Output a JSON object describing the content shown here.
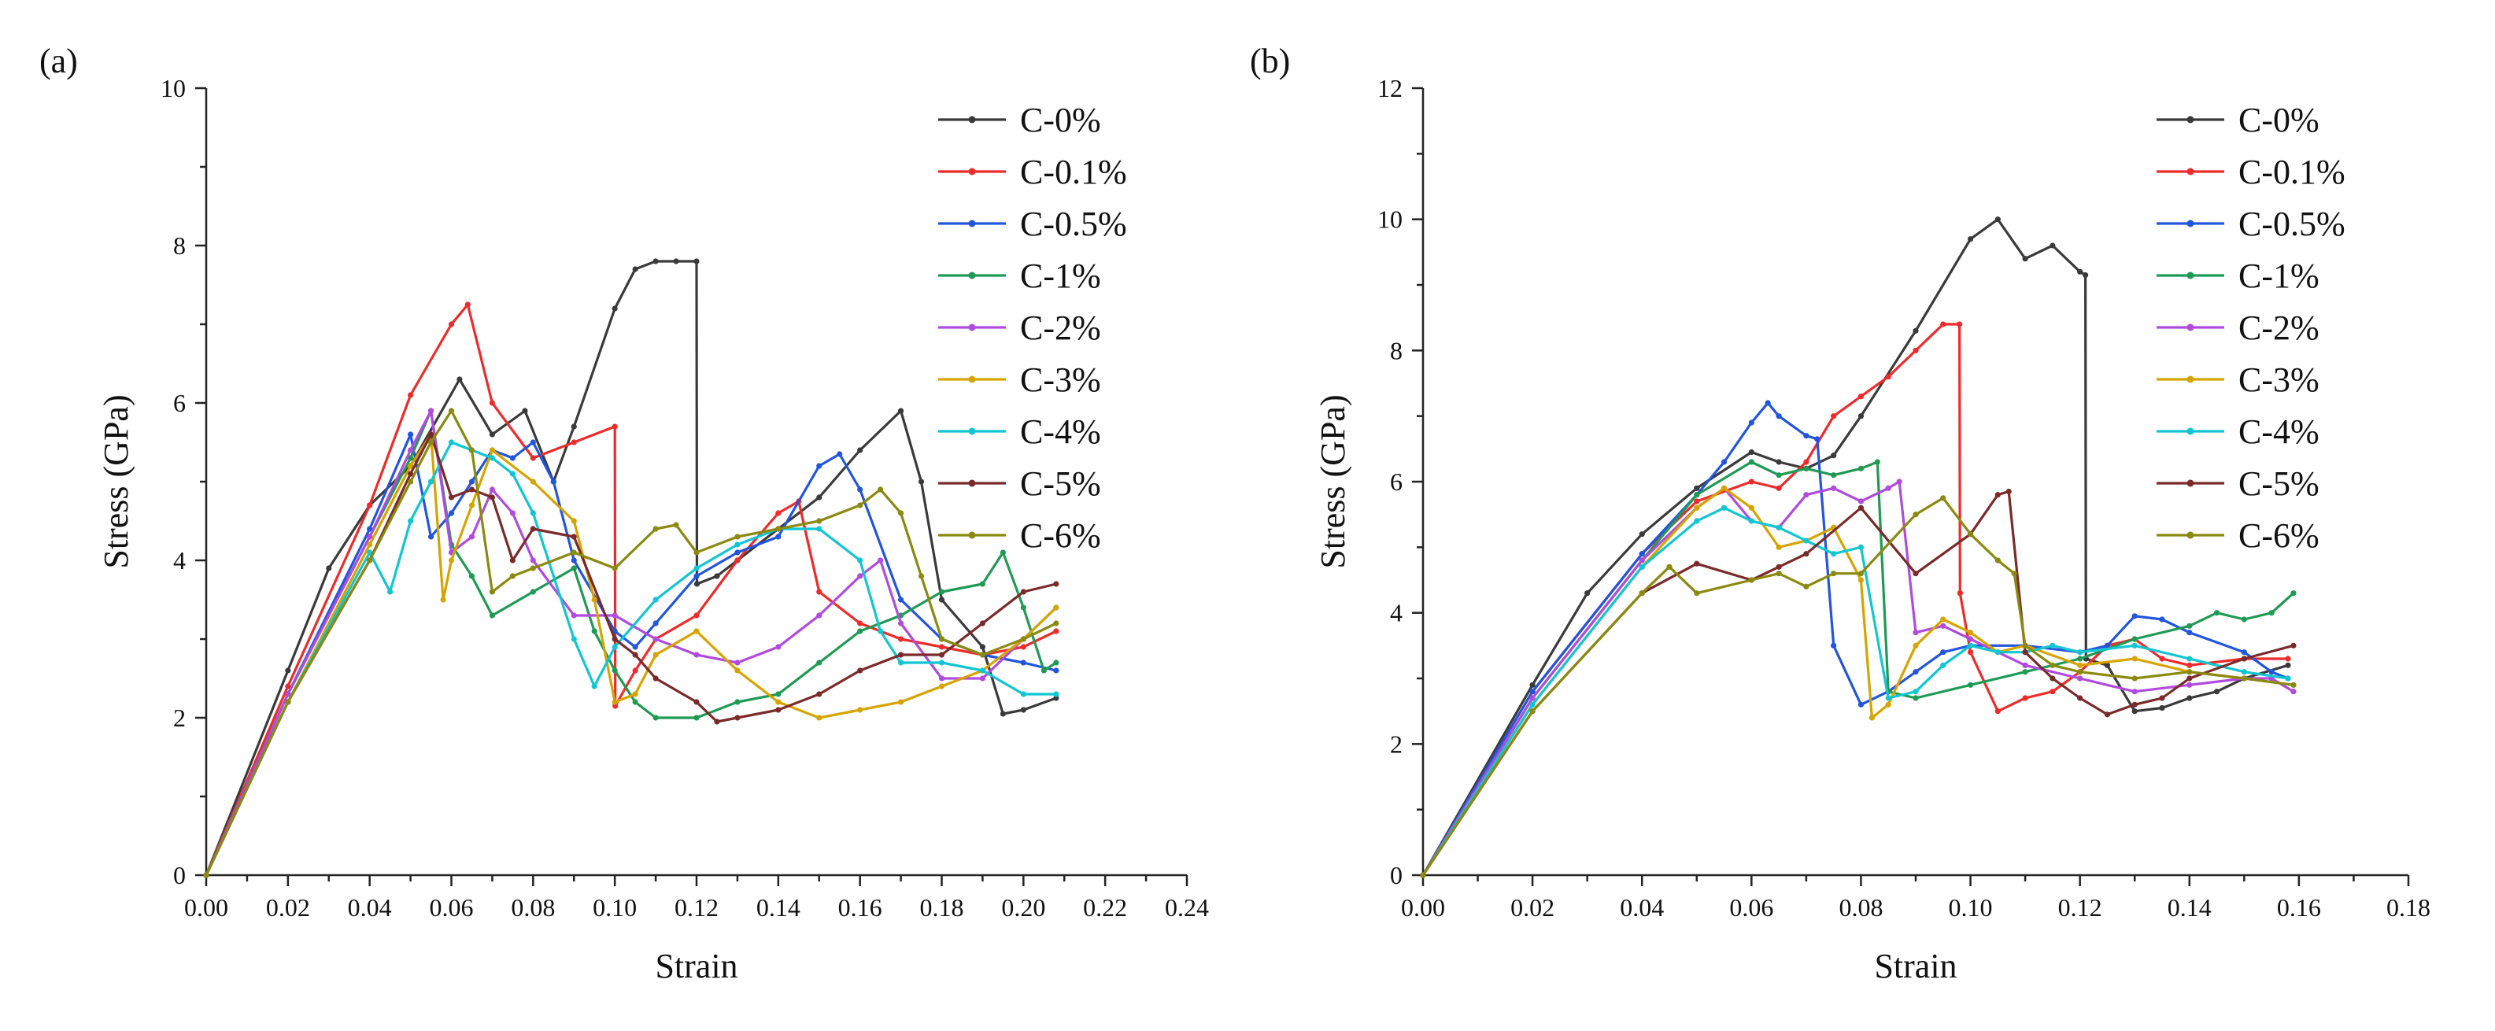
{
  "colors": {
    "C-0%": "#3a3a3a",
    "C-0.1%": "#ee2b2b",
    "C-0.5%": "#2255dd",
    "C-1%": "#1f9a55",
    "C-2%": "#b04bdd",
    "C-3%": "#d6a400",
    "C-4%": "#11c6d2",
    "C-5%": "#7a2a2a",
    "C-6%": "#8a8a10"
  },
  "chart_data": [
    {
      "panel_label": "(a)",
      "type": "line",
      "xlabel": "Strain",
      "ylabel": "Stress (GPa)",
      "xlim": [
        0,
        0.24
      ],
      "ylim": [
        0,
        10
      ],
      "xticks": [
        "0.00",
        "0.02",
        "0.04",
        "0.06",
        "0.08",
        "0.10",
        "0.12",
        "0.14",
        "0.16",
        "0.18",
        "0.20",
        "0.22",
        "0.24"
      ],
      "yticks": [
        "0",
        "2",
        "4",
        "6",
        "8",
        "10"
      ],
      "legend_position": "top-right",
      "series": [
        {
          "name": "C-0%",
          "x": [
            0,
            0.02,
            0.03,
            0.04,
            0.05,
            0.062,
            0.07,
            0.078,
            0.085,
            0.09,
            0.1,
            0.105,
            0.11,
            0.115,
            0.12,
            0.1201,
            0.125,
            0.13,
            0.14,
            0.15,
            0.16,
            0.17,
            0.175,
            0.18,
            0.19,
            0.195,
            0.2,
            0.208
          ],
          "y": [
            0,
            2.6,
            3.9,
            4.7,
            5.2,
            6.3,
            5.6,
            5.9,
            5.0,
            5.7,
            7.2,
            7.7,
            7.8,
            7.8,
            7.8,
            3.7,
            3.8,
            4.0,
            4.4,
            4.8,
            5.4,
            5.9,
            5.0,
            3.5,
            2.9,
            2.05,
            2.1,
            2.25
          ]
        },
        {
          "name": "C-0.1%",
          "x": [
            0,
            0.02,
            0.04,
            0.05,
            0.06,
            0.064,
            0.07,
            0.08,
            0.09,
            0.1,
            0.1001,
            0.105,
            0.11,
            0.12,
            0.13,
            0.14,
            0.145,
            0.15,
            0.16,
            0.17,
            0.18,
            0.19,
            0.2,
            0.208
          ],
          "y": [
            0,
            2.4,
            4.7,
            6.1,
            7.0,
            7.25,
            6.0,
            5.3,
            5.5,
            5.7,
            2.15,
            2.6,
            3.0,
            3.3,
            4.0,
            4.6,
            4.75,
            3.6,
            3.2,
            3.0,
            2.9,
            2.8,
            2.9,
            3.1
          ]
        },
        {
          "name": "C-0.5%",
          "x": [
            0,
            0.02,
            0.04,
            0.05,
            0.055,
            0.06,
            0.065,
            0.07,
            0.075,
            0.08,
            0.085,
            0.09,
            0.1,
            0.105,
            0.11,
            0.12,
            0.13,
            0.14,
            0.15,
            0.155,
            0.16,
            0.17,
            0.18,
            0.19,
            0.2,
            0.208
          ],
          "y": [
            0,
            2.3,
            4.4,
            5.6,
            4.3,
            4.6,
            5.0,
            5.4,
            5.3,
            5.5,
            5.0,
            4.0,
            3.1,
            2.9,
            3.2,
            3.8,
            4.1,
            4.3,
            5.2,
            5.35,
            4.9,
            3.5,
            3.0,
            2.8,
            2.7,
            2.6
          ]
        },
        {
          "name": "C-1%",
          "x": [
            0,
            0.02,
            0.04,
            0.05,
            0.055,
            0.06,
            0.065,
            0.07,
            0.08,
            0.09,
            0.095,
            0.1,
            0.105,
            0.11,
            0.12,
            0.13,
            0.14,
            0.15,
            0.16,
            0.17,
            0.18,
            0.19,
            0.195,
            0.2,
            0.205,
            0.208
          ],
          "y": [
            0,
            2.3,
            4.3,
            5.3,
            5.9,
            4.2,
            3.8,
            3.3,
            3.6,
            3.9,
            3.1,
            2.6,
            2.2,
            2.0,
            2.0,
            2.2,
            2.3,
            2.7,
            3.1,
            3.3,
            3.6,
            3.7,
            4.1,
            3.4,
            2.6,
            2.7
          ]
        },
        {
          "name": "C-2%",
          "x": [
            0,
            0.02,
            0.04,
            0.05,
            0.055,
            0.06,
            0.065,
            0.07,
            0.075,
            0.08,
            0.09,
            0.1,
            0.11,
            0.12,
            0.13,
            0.14,
            0.15,
            0.16,
            0.165,
            0.17,
            0.18,
            0.19,
            0.2,
            0.208
          ],
          "y": [
            0,
            2.3,
            4.3,
            5.4,
            5.9,
            4.1,
            4.3,
            4.9,
            4.6,
            4.0,
            3.3,
            3.3,
            3.0,
            2.8,
            2.7,
            2.9,
            3.3,
            3.8,
            4.0,
            3.2,
            2.5,
            2.5,
            3.0,
            3.4
          ]
        },
        {
          "name": "C-3%",
          "x": [
            0,
            0.02,
            0.04,
            0.05,
            0.055,
            0.058,
            0.06,
            0.065,
            0.07,
            0.08,
            0.09,
            0.095,
            0.1,
            0.105,
            0.11,
            0.12,
            0.13,
            0.14,
            0.15,
            0.16,
            0.17,
            0.18,
            0.19,
            0.2,
            0.208
          ],
          "y": [
            0,
            2.2,
            4.2,
            5.2,
            5.6,
            3.5,
            4.0,
            4.7,
            5.4,
            5.0,
            4.5,
            3.5,
            2.2,
            2.3,
            2.8,
            3.1,
            2.6,
            2.2,
            2.0,
            2.1,
            2.2,
            2.4,
            2.6,
            3.0,
            3.4
          ]
        },
        {
          "name": "C-4%",
          "x": [
            0,
            0.02,
            0.04,
            0.045,
            0.05,
            0.055,
            0.06,
            0.065,
            0.07,
            0.075,
            0.08,
            0.09,
            0.095,
            0.1,
            0.11,
            0.12,
            0.13,
            0.14,
            0.15,
            0.16,
            0.165,
            0.17,
            0.18,
            0.19,
            0.2,
            0.208
          ],
          "y": [
            0,
            2.2,
            4.1,
            3.6,
            4.5,
            5.0,
            5.5,
            5.4,
            5.3,
            5.1,
            4.6,
            3.0,
            2.4,
            2.9,
            3.5,
            3.9,
            4.2,
            4.4,
            4.4,
            4.0,
            3.1,
            2.7,
            2.7,
            2.6,
            2.3,
            2.3
          ]
        },
        {
          "name": "C-5%",
          "x": [
            0,
            0.02,
            0.04,
            0.05,
            0.055,
            0.06,
            0.065,
            0.07,
            0.075,
            0.08,
            0.09,
            0.1,
            0.105,
            0.11,
            0.12,
            0.125,
            0.13,
            0.14,
            0.15,
            0.16,
            0.17,
            0.18,
            0.19,
            0.2,
            0.208
          ],
          "y": [
            0,
            2.2,
            4.0,
            5.1,
            5.6,
            4.8,
            4.9,
            4.8,
            4.0,
            4.4,
            4.3,
            3.0,
            2.8,
            2.5,
            2.2,
            1.95,
            2.0,
            2.1,
            2.3,
            2.6,
            2.8,
            2.8,
            3.2,
            3.6,
            3.7
          ]
        },
        {
          "name": "C-6%",
          "x": [
            0,
            0.02,
            0.04,
            0.05,
            0.055,
            0.06,
            0.065,
            0.07,
            0.075,
            0.08,
            0.09,
            0.1,
            0.11,
            0.115,
            0.12,
            0.13,
            0.14,
            0.15,
            0.16,
            0.165,
            0.17,
            0.175,
            0.18,
            0.19,
            0.2,
            0.208
          ],
          "y": [
            0,
            2.2,
            4.0,
            5.0,
            5.5,
            5.9,
            5.4,
            3.6,
            3.8,
            3.9,
            4.1,
            3.9,
            4.4,
            4.45,
            4.1,
            4.3,
            4.4,
            4.5,
            4.7,
            4.9,
            4.6,
            3.8,
            3.0,
            2.8,
            3.0,
            3.2
          ]
        }
      ]
    },
    {
      "panel_label": "(b)",
      "type": "line",
      "xlabel": "Strain",
      "ylabel": "Stress (GPa)",
      "xlim": [
        0,
        0.18
      ],
      "ylim": [
        0,
        12
      ],
      "xticks": [
        "0.00",
        "0.02",
        "0.04",
        "0.06",
        "0.08",
        "0.10",
        "0.12",
        "0.14",
        "0.16",
        "0.18"
      ],
      "yticks": [
        "0",
        "2",
        "4",
        "6",
        "8",
        "10",
        "12"
      ],
      "legend_position": "top-right",
      "series": [
        {
          "name": "C-0%",
          "x": [
            0,
            0.02,
            0.03,
            0.04,
            0.05,
            0.06,
            0.065,
            0.07,
            0.075,
            0.08,
            0.09,
            0.1,
            0.105,
            0.11,
            0.115,
            0.12,
            0.121,
            0.1211,
            0.125,
            0.13,
            0.135,
            0.14,
            0.145,
            0.15,
            0.158
          ],
          "y": [
            0,
            2.9,
            4.3,
            5.2,
            5.9,
            6.45,
            6.3,
            6.2,
            6.4,
            7.0,
            8.3,
            9.7,
            10.0,
            9.4,
            9.6,
            9.2,
            9.15,
            3.3,
            3.2,
            2.5,
            2.55,
            2.7,
            2.8,
            3.0,
            3.2
          ]
        },
        {
          "name": "C-0.1%",
          "x": [
            0,
            0.02,
            0.04,
            0.05,
            0.06,
            0.065,
            0.07,
            0.075,
            0.08,
            0.085,
            0.09,
            0.095,
            0.098,
            0.0981,
            0.1,
            0.105,
            0.11,
            0.115,
            0.12,
            0.125,
            0.13,
            0.135,
            0.14,
            0.15,
            0.158
          ],
          "y": [
            0,
            2.8,
            4.9,
            5.7,
            6.0,
            5.9,
            6.3,
            7.0,
            7.3,
            7.6,
            8.0,
            8.4,
            8.4,
            4.3,
            3.4,
            2.5,
            2.7,
            2.8,
            3.1,
            3.5,
            3.6,
            3.3,
            3.2,
            3.3,
            3.3
          ]
        },
        {
          "name": "C-0.5%",
          "x": [
            0,
            0.02,
            0.04,
            0.05,
            0.055,
            0.06,
            0.063,
            0.065,
            0.07,
            0.072,
            0.075,
            0.08,
            0.085,
            0.09,
            0.095,
            0.1,
            0.11,
            0.12,
            0.125,
            0.13,
            0.135,
            0.14,
            0.15,
            0.155,
            0.158
          ],
          "y": [
            0,
            2.8,
            4.9,
            5.8,
            6.3,
            6.9,
            7.2,
            7.0,
            6.7,
            6.65,
            3.5,
            2.6,
            2.8,
            3.1,
            3.4,
            3.5,
            3.5,
            3.4,
            3.5,
            3.95,
            3.9,
            3.7,
            3.4,
            3.1,
            3.0
          ]
        },
        {
          "name": "C-1%",
          "x": [
            0,
            0.02,
            0.04,
            0.05,
            0.06,
            0.065,
            0.07,
            0.075,
            0.08,
            0.083,
            0.085,
            0.09,
            0.1,
            0.11,
            0.12,
            0.13,
            0.14,
            0.145,
            0.15,
            0.155,
            0.159
          ],
          "y": [
            0,
            2.7,
            4.8,
            5.8,
            6.3,
            6.1,
            6.2,
            6.1,
            6.2,
            6.3,
            2.8,
            2.7,
            2.9,
            3.1,
            3.3,
            3.6,
            3.8,
            4.0,
            3.9,
            4.0,
            4.3
          ]
        },
        {
          "name": "C-2%",
          "x": [
            0,
            0.02,
            0.04,
            0.05,
            0.055,
            0.06,
            0.065,
            0.07,
            0.075,
            0.08,
            0.085,
            0.087,
            0.09,
            0.095,
            0.1,
            0.105,
            0.11,
            0.12,
            0.13,
            0.14,
            0.15,
            0.155,
            0.159
          ],
          "y": [
            0,
            2.7,
            4.8,
            5.6,
            5.9,
            5.4,
            5.3,
            5.8,
            5.9,
            5.7,
            5.9,
            6.0,
            3.7,
            3.8,
            3.6,
            3.4,
            3.2,
            3.0,
            2.8,
            2.9,
            3.0,
            3.0,
            2.8
          ]
        },
        {
          "name": "C-3%",
          "x": [
            0,
            0.02,
            0.04,
            0.05,
            0.055,
            0.06,
            0.065,
            0.07,
            0.075,
            0.08,
            0.082,
            0.085,
            0.09,
            0.095,
            0.1,
            0.105,
            0.11,
            0.12,
            0.13,
            0.14,
            0.15,
            0.159
          ],
          "y": [
            0,
            2.6,
            4.7,
            5.6,
            5.9,
            5.6,
            5.0,
            5.1,
            5.3,
            4.5,
            2.4,
            2.6,
            3.5,
            3.9,
            3.7,
            3.4,
            3.5,
            3.2,
            3.3,
            3.1,
            3.0,
            2.9
          ]
        },
        {
          "name": "C-4%",
          "x": [
            0,
            0.02,
            0.04,
            0.05,
            0.055,
            0.06,
            0.065,
            0.07,
            0.075,
            0.08,
            0.085,
            0.09,
            0.095,
            0.1,
            0.105,
            0.11,
            0.115,
            0.12,
            0.13,
            0.14,
            0.15,
            0.158
          ],
          "y": [
            0,
            2.6,
            4.7,
            5.4,
            5.6,
            5.4,
            5.3,
            5.1,
            4.9,
            5.0,
            2.7,
            2.8,
            3.2,
            3.5,
            3.4,
            3.4,
            3.5,
            3.4,
            3.5,
            3.3,
            3.1,
            3.0
          ]
        },
        {
          "name": "C-5%",
          "x": [
            0,
            0.02,
            0.04,
            0.05,
            0.06,
            0.065,
            0.07,
            0.08,
            0.09,
            0.1,
            0.105,
            0.107,
            0.11,
            0.115,
            0.12,
            0.125,
            0.13,
            0.135,
            0.14,
            0.15,
            0.159
          ],
          "y": [
            0,
            2.5,
            4.3,
            4.75,
            4.5,
            4.7,
            4.9,
            5.6,
            4.6,
            5.2,
            5.8,
            5.85,
            3.4,
            3.0,
            2.7,
            2.45,
            2.6,
            2.7,
            3.0,
            3.3,
            3.5
          ]
        },
        {
          "name": "C-6%",
          "x": [
            0,
            0.02,
            0.04,
            0.045,
            0.05,
            0.06,
            0.065,
            0.07,
            0.075,
            0.08,
            0.09,
            0.095,
            0.1,
            0.105,
            0.108,
            0.11,
            0.115,
            0.12,
            0.13,
            0.14,
            0.15,
            0.159
          ],
          "y": [
            0,
            2.5,
            4.3,
            4.7,
            4.3,
            4.5,
            4.6,
            4.4,
            4.6,
            4.6,
            5.5,
            5.75,
            5.2,
            4.8,
            4.6,
            3.5,
            3.2,
            3.1,
            3.0,
            3.1,
            3.0,
            2.9
          ]
        }
      ]
    }
  ]
}
